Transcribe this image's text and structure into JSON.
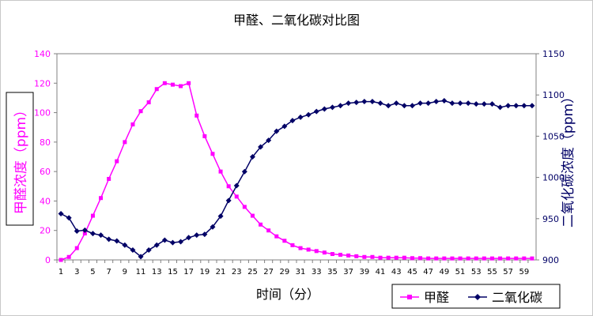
{
  "chart_data": {
    "type": "line",
    "title": "甲醛、二氧化碳对比图",
    "xlabel": "时间（分）",
    "ylabel_left": "甲醛浓度（ppm）",
    "ylabel_right": "二氧化碳浓度（ppm）",
    "x": [
      1,
      2,
      3,
      4,
      5,
      6,
      7,
      8,
      9,
      10,
      11,
      12,
      13,
      14,
      15,
      16,
      17,
      18,
      19,
      20,
      21,
      22,
      23,
      24,
      25,
      26,
      27,
      28,
      29,
      30,
      31,
      32,
      33,
      34,
      35,
      36,
      37,
      38,
      39,
      40,
      41,
      42,
      43,
      44,
      45,
      46,
      47,
      48,
      49,
      50,
      51,
      52,
      53,
      54,
      55,
      56,
      57,
      58,
      59,
      60
    ],
    "x_tick_labels": [
      "1",
      "3",
      "5",
      "7",
      "9",
      "11",
      "13",
      "15",
      "17",
      "19",
      "21",
      "23",
      "25",
      "27",
      "29",
      "31",
      "33",
      "35",
      "37",
      "39",
      "41",
      "43",
      "45",
      "47",
      "49",
      "51",
      "53",
      "55",
      "57",
      "59"
    ],
    "ylim_left": [
      0,
      140
    ],
    "yticks_left": [
      "0",
      "20",
      "40",
      "60",
      "80",
      "100",
      "120",
      "140"
    ],
    "ylim_right": [
      900,
      1150
    ],
    "yticks_right": [
      "900",
      "950",
      "1000",
      "1050",
      "1100",
      "1150"
    ],
    "legend_position": "bottom-right",
    "series": [
      {
        "name": "甲醛",
        "axis": "left",
        "color": "#ff00ff",
        "marker": "square",
        "values": [
          0,
          2,
          8,
          18,
          30,
          42,
          55,
          67,
          80,
          92,
          101,
          107,
          116,
          120,
          119,
          118,
          120,
          98,
          84,
          72,
          60,
          50,
          43,
          36,
          30,
          24,
          20,
          16,
          13,
          10,
          8,
          7,
          6,
          5,
          4,
          3.5,
          3,
          2.5,
          2,
          2,
          1.5,
          1.5,
          1.5,
          1.5,
          1.2,
          1.2,
          1,
          1,
          1,
          1,
          1,
          1,
          1,
          1,
          1,
          1,
          1,
          1,
          1,
          1
        ]
      },
      {
        "name": "二氧化碳",
        "axis": "right",
        "color": "#000066",
        "marker": "diamond",
        "values": [
          956,
          951,
          935,
          936,
          932,
          930,
          925,
          923,
          918,
          912,
          904,
          912,
          918,
          924,
          921,
          922,
          927,
          930,
          931,
          940,
          953,
          972,
          990,
          1007,
          1025,
          1037,
          1045,
          1056,
          1062,
          1069,
          1073,
          1076,
          1080,
          1083,
          1085,
          1087,
          1090,
          1091,
          1092,
          1092,
          1090,
          1087,
          1090,
          1087,
          1087,
          1090,
          1090,
          1092,
          1093,
          1090,
          1090,
          1090,
          1089,
          1089,
          1089,
          1085,
          1087,
          1087,
          1087,
          1087
        ]
      }
    ]
  }
}
